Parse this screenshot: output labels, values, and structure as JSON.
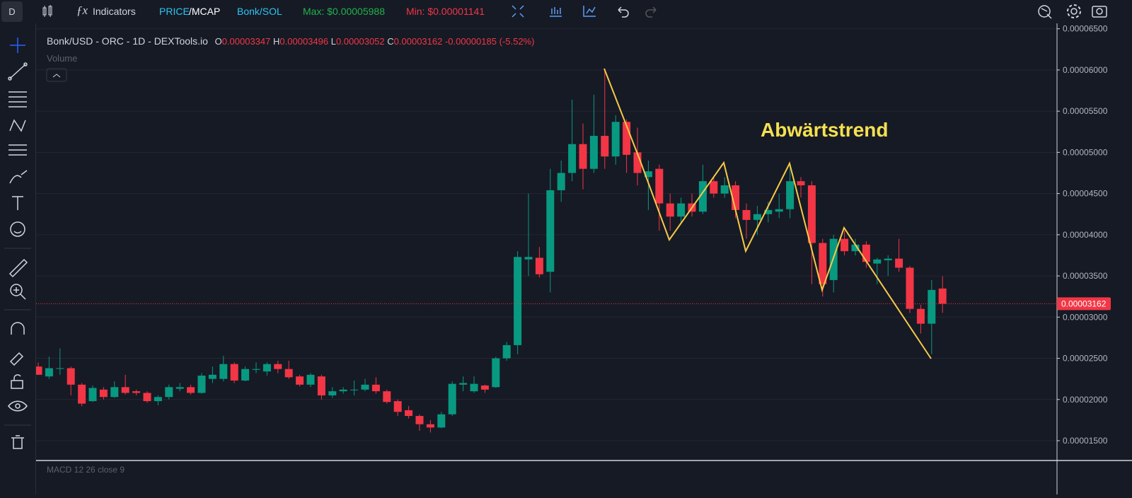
{
  "toolbar": {
    "badge": "D",
    "indicators": "Indicators",
    "price": "PRICE",
    "mcap": "/MCAP",
    "pair": "Bonk/SOL",
    "max": "Max: $0.00005988",
    "min": "Min: $0.00001141"
  },
  "legend": {
    "symbol": "Bonk/USD - ORC - 1D - DEXTools.io",
    "o_label": "O",
    "o": "0.00003347",
    "h_label": "H",
    "h": "0.00003496",
    "l_label": "L",
    "l": "0.00003052",
    "c_label": "C",
    "c": "0.00003162",
    "change": "-0.00000185 (-5.52%)",
    "volume": "Volume"
  },
  "macd": "MACD 12 26 close 9",
  "chart_data": {
    "type": "candlestick",
    "annotation": "Abwärtstrend",
    "up_color": "#089981",
    "down_color": "#f23645",
    "grid": true,
    "ylim": [
      1.268e-05,
      6.566e-05
    ],
    "yticks": [
      {
        "value": 1.5e-05,
        "label": "0.00001500"
      },
      {
        "value": 2e-05,
        "label": "0.00002000"
      },
      {
        "value": 2.5e-05,
        "label": "0.00002500"
      },
      {
        "value": 3e-05,
        "label": "0.00003000"
      },
      {
        "value": 3.5e-05,
        "label": "0.00003500"
      },
      {
        "value": 4e-05,
        "label": "0.00004000"
      },
      {
        "value": 4.5e-05,
        "label": "0.00004500"
      },
      {
        "value": 5e-05,
        "label": "0.00005000"
      },
      {
        "value": 5.5e-05,
        "label": "0.00005500"
      },
      {
        "value": 6e-05,
        "label": "0.00006000"
      },
      {
        "value": 6.5e-05,
        "label": "0.00006500"
      }
    ],
    "last_price": {
      "value": 3.162e-05,
      "label": "0.00003162"
    },
    "open": [
      2.4e-05,
      2.28e-05,
      2.38e-05,
      2.38e-05,
      2.18e-05,
      1.98e-05,
      2.12e-05,
      2.03e-05,
      2.15e-05,
      2.1e-05,
      2.08e-05,
      1.98e-05,
      2.03e-05,
      2.13e-05,
      2.15e-05,
      2.08e-05,
      2.25e-05,
      2.25e-05,
      2.43e-05,
      2.23e-05,
      2.36e-05,
      2.34e-05,
      2.43e-05,
      2.37e-05,
      2.28e-05,
      2.18e-05,
      2.28e-05,
      2.05e-05,
      2.1e-05,
      2.12e-05,
      2.12e-05,
      2.18e-05,
      2.1e-05,
      1.98e-05,
      1.87e-05,
      1.8e-05,
      1.7e-05,
      1.66e-05,
      1.82e-05,
      2.18e-05,
      2.1e-05,
      2.17e-05,
      2.15e-05,
      2.5e-05,
      2.66e-05,
      3.7e-05,
      3.72e-05,
      3.55e-05,
      4.54e-05,
      4.75e-05,
      5.1e-05,
      4.8e-05,
      5.2e-05,
      4.95e-05,
      5.37e-05,
      5e-05,
      4.7e-05,
      4.8e-05,
      4.38e-05,
      4.22e-05,
      4.38e-05,
      4.28e-05,
      4.65e-05,
      4.5e-05,
      4.6e-05,
      4.3e-05,
      4.18e-05,
      4.25e-05,
      4.28e-05,
      4.31e-05,
      4.65e-05,
      4.6e-05,
      3.9e-05,
      3.45e-05,
      3.95e-05,
      3.8e-05,
      3.88e-05,
      3.65e-05,
      3.69e-05,
      3.71e-05,
      3.6e-05,
      3.1e-05,
      2.92e-05,
      3.347e-05
    ],
    "high": [
      2.45e-05,
      2.52e-05,
      2.62e-05,
      2.4e-05,
      2.2e-05,
      2.17e-05,
      2.15e-05,
      2.22e-05,
      2.3e-05,
      2.12e-05,
      2.1e-05,
      2.05e-05,
      2.18e-05,
      2.2e-05,
      2.18e-05,
      2.32e-05,
      2.4e-05,
      2.53e-05,
      2.45e-05,
      2.4e-05,
      2.45e-05,
      2.45e-05,
      2.47e-05,
      2.47e-05,
      2.3e-05,
      2.32e-05,
      2.3e-05,
      2.15e-05,
      2.15e-05,
      2.23e-05,
      2.25e-05,
      2.27e-05,
      2.12e-05,
      2e-05,
      1.92e-05,
      1.82e-05,
      1.75e-05,
      1.85e-05,
      2.22e-05,
      2.28e-05,
      2.28e-05,
      2.18e-05,
      2.52e-05,
      2.7e-05,
      3.8e-05,
      4.5e-05,
      3.85e-05,
      4.8e-05,
      4.9e-05,
      5.64e-05,
      5.35e-05,
      5.7e-05,
      6e-05,
      5.45e-05,
      5.4e-05,
      5.3e-05,
      4.9e-05,
      4.85e-05,
      4.5e-05,
      4.45e-05,
      4.5e-05,
      4.85e-05,
      4.7e-05,
      4.7e-05,
      4.65e-05,
      4.38e-05,
      4.35e-05,
      4.4e-05,
      4.5e-05,
      4.85e-05,
      4.7e-05,
      4.65e-05,
      3.95e-05,
      4e-05,
      4.05e-05,
      3.95e-05,
      3.92e-05,
      3.72e-05,
      3.75e-05,
      3.95e-05,
      3.62e-05,
      3.15e-05,
      3.45e-05,
      3.496e-05
    ],
    "low": [
      2.3e-05,
      2.25e-05,
      2.3e-05,
      2.05e-05,
      1.92e-05,
      1.97e-05,
      2e-05,
      2.02e-05,
      2.06e-05,
      2.05e-05,
      1.96e-05,
      1.93e-05,
      2e-05,
      2.1e-05,
      2.06e-05,
      2.07e-05,
      2.2e-05,
      2.22e-05,
      2.2e-05,
      2.22e-05,
      2.32e-05,
      2.29e-05,
      2.32e-05,
      2.25e-05,
      2.16e-05,
      2.15e-05,
      2e-05,
      2.02e-05,
      2.07e-05,
      2.05e-05,
      2.1e-05,
      2.07e-05,
      1.95e-05,
      1.8e-05,
      1.77e-05,
      1.62e-05,
      1.6e-05,
      1.65e-05,
      1.8e-05,
      2.1e-05,
      2.08e-05,
      2.08e-05,
      2.14e-05,
      2.47e-05,
      2.55e-05,
      3.5e-05,
      3.48e-05,
      3.3e-05,
      4.4e-05,
      4.65e-05,
      4.55e-05,
      4.75e-05,
      4.8e-05,
      4.85e-05,
      4.75e-05,
      4.6e-05,
      4.3e-05,
      4.05e-05,
      4.05e-05,
      4.15e-05,
      4.22e-05,
      4.25e-05,
      4.45e-05,
      4.45e-05,
      4.2e-05,
      3.95e-05,
      4e-05,
      4.15e-05,
      4.2e-05,
      4.2e-05,
      4.45e-05,
      3.4e-05,
      3.25e-05,
      3.3e-05,
      3.75e-05,
      3.75e-05,
      3.6e-05,
      3.4e-05,
      3.5e-05,
      3.55e-05,
      3.05e-05,
      2.8e-05,
      2.55e-05,
      3.052e-05
    ],
    "close": [
      2.3e-05,
      2.38e-05,
      2.38e-05,
      2.18e-05,
      1.95e-05,
      2.14e-05,
      2.03e-05,
      2.15e-05,
      2.08e-05,
      2.08e-05,
      1.98e-05,
      2.03e-05,
      2.15e-05,
      2.15e-05,
      2.08e-05,
      2.29e-05,
      2.3e-05,
      2.43e-05,
      2.23e-05,
      2.37e-05,
      2.37e-05,
      2.43e-05,
      2.37e-05,
      2.27e-05,
      2.18e-05,
      2.3e-05,
      2.05e-05,
      2.1e-05,
      2.12e-05,
      2.12e-05,
      2.18e-05,
      2.1e-05,
      1.97e-05,
      1.85e-05,
      1.8e-05,
      1.7e-05,
      1.66e-05,
      1.82e-05,
      2.19e-05,
      2.2e-05,
      2.19e-05,
      2.12e-05,
      2.5e-05,
      2.66e-05,
      3.73e-05,
      3.73e-05,
      3.52e-05,
      4.54e-05,
      4.75e-05,
      5.1e-05,
      4.8e-05,
      5.2e-05,
      4.95e-05,
      5.37e-05,
      4.97e-05,
      4.75e-05,
      4.77e-05,
      4.38e-05,
      4.22e-05,
      4.38e-05,
      4.28e-05,
      4.65e-05,
      4.5e-05,
      4.6e-05,
      4.3e-05,
      4.18e-05,
      4.25e-05,
      4.3e-05,
      4.31e-05,
      4.65e-05,
      4.6e-05,
      3.9e-05,
      3.4e-05,
      3.95e-05,
      3.8e-05,
      3.88e-05,
      3.67e-05,
      3.7e-05,
      3.71e-05,
      3.6e-05,
      3.1e-05,
      2.92e-05,
      3.33e-05,
      3.162e-05
    ]
  }
}
